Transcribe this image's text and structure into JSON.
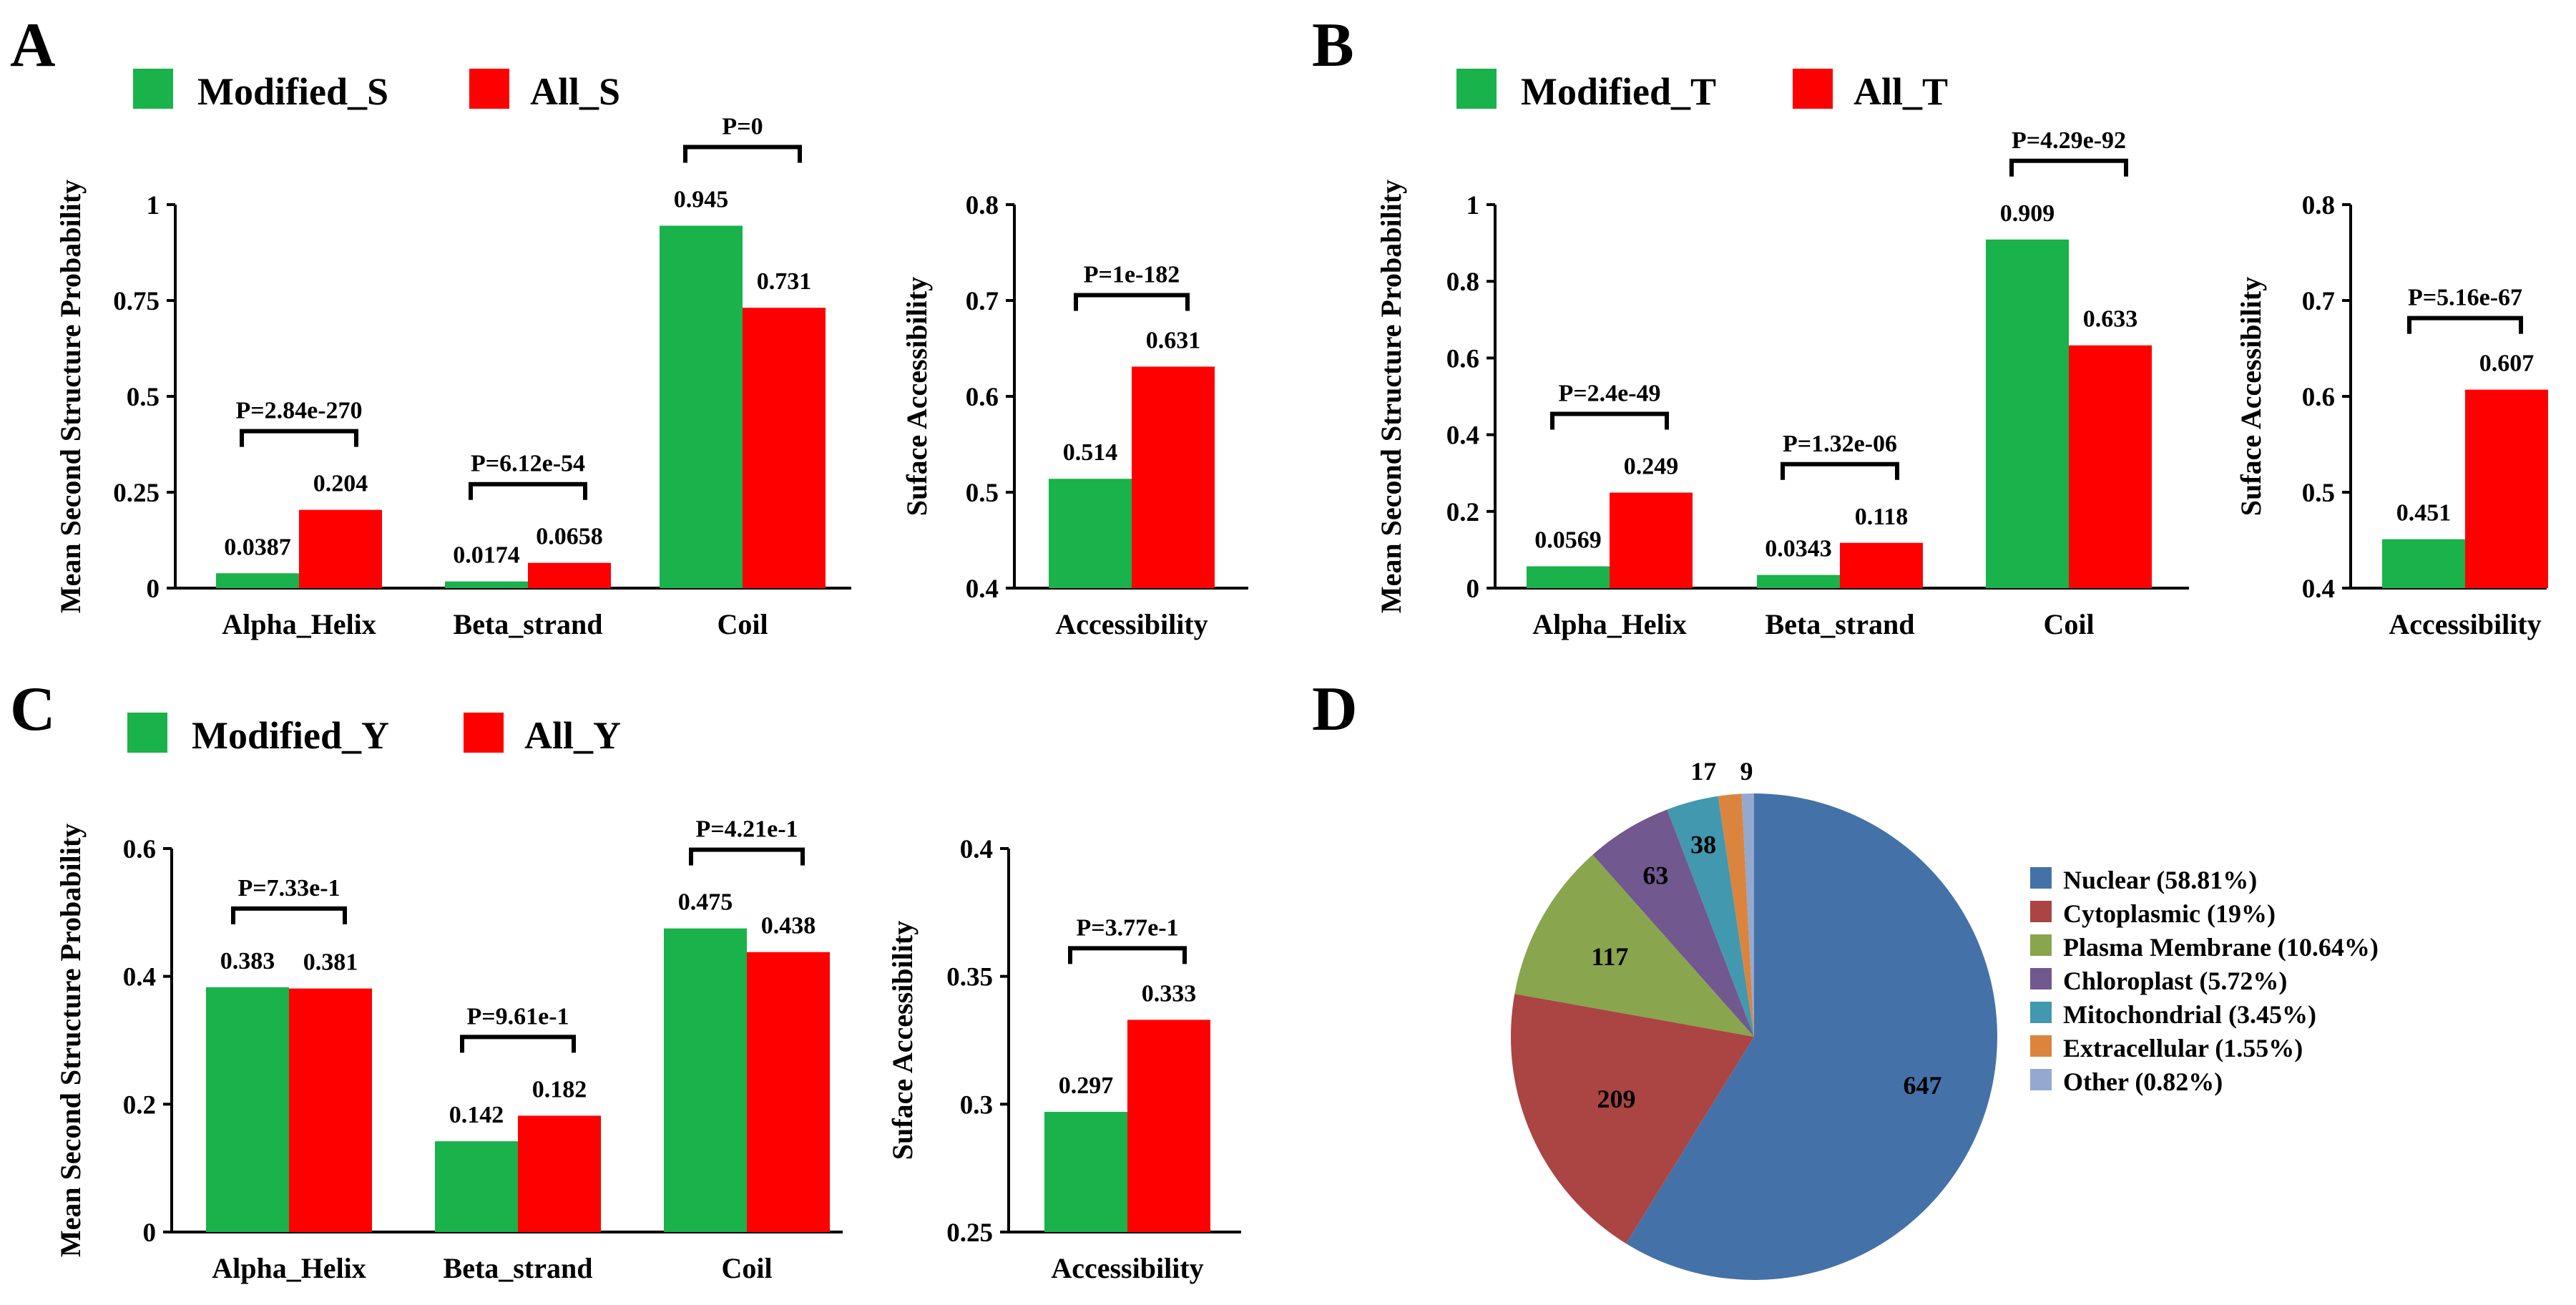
{
  "figure": {
    "panels": [
      "A",
      "B",
      "C",
      "D"
    ],
    "colors": {
      "modified": "#19b24b",
      "all": "#ff0000",
      "axis": "#000000"
    }
  },
  "chart_data": [
    {
      "id": "A-structure",
      "panel": "A",
      "type": "bar",
      "categories": [
        "Alpha_Helix",
        "Beta_strand",
        "Coil"
      ],
      "series": [
        {
          "name": "Modified_S",
          "color": "#19b24b",
          "values": [
            0.0387,
            0.0174,
            0.945
          ],
          "labels": [
            "0.0387",
            "0.0174",
            "0.945"
          ]
        },
        {
          "name": "All_S",
          "color": "#ff0000",
          "values": [
            0.204,
            0.0658,
            0.731
          ],
          "labels": [
            "0.204",
            "0.0658",
            "0.731"
          ]
        }
      ],
      "pvalues": [
        "P=2.84e-270",
        "P=6.12e-54",
        "P=0"
      ],
      "ylabel": "Mean Second Structure Probability",
      "ylim": [
        0,
        1
      ],
      "yticks": [
        "0",
        "0.25",
        "0.5",
        "0.75",
        "1"
      ],
      "legend": "top-left"
    },
    {
      "id": "A-access",
      "panel": "A",
      "type": "bar",
      "categories": [
        "Accessibility"
      ],
      "series": [
        {
          "name": "Modified_S",
          "color": "#19b24b",
          "values": [
            0.514
          ],
          "labels": [
            "0.514"
          ]
        },
        {
          "name": "All_S",
          "color": "#ff0000",
          "values": [
            0.631
          ],
          "labels": [
            "0.631"
          ]
        }
      ],
      "pvalues": [
        "P=1e-182"
      ],
      "ylabel": "Suface Accessibility",
      "ylim": [
        0.4,
        0.8
      ],
      "yticks": [
        "0.4",
        "0.5",
        "0.6",
        "0.7",
        "0.8"
      ]
    },
    {
      "id": "B-structure",
      "panel": "B",
      "type": "bar",
      "categories": [
        "Alpha_Helix",
        "Beta_strand",
        "Coil"
      ],
      "series": [
        {
          "name": "Modified_T",
          "color": "#19b24b",
          "values": [
            0.0569,
            0.0343,
            0.909
          ],
          "labels": [
            "0.0569",
            "0.0343",
            "0.909"
          ]
        },
        {
          "name": "All_T",
          "color": "#ff0000",
          "values": [
            0.249,
            0.118,
            0.633
          ],
          "labels": [
            "0.249",
            "0.118",
            "0.633"
          ]
        }
      ],
      "pvalues": [
        "P=2.4e-49",
        "P=1.32e-06",
        "P=4.29e-92"
      ],
      "ylabel": "Mean Second Structure Probability",
      "ylim": [
        0,
        1
      ],
      "yticks": [
        "0",
        "0.2",
        "0.4",
        "0.6",
        "0.8",
        "1"
      ],
      "legend": "top-left"
    },
    {
      "id": "B-access",
      "panel": "B",
      "type": "bar",
      "categories": [
        "Accessibility"
      ],
      "series": [
        {
          "name": "Modified_T",
          "color": "#19b24b",
          "values": [
            0.451
          ],
          "labels": [
            "0.451"
          ]
        },
        {
          "name": "All_T",
          "color": "#ff0000",
          "values": [
            0.607
          ],
          "labels": [
            "0.607"
          ]
        }
      ],
      "pvalues": [
        "P=5.16e-67"
      ],
      "ylabel": "Suface Accessibility",
      "ylim": [
        0.4,
        0.8
      ],
      "yticks": [
        "0.4",
        "0.5",
        "0.6",
        "0.7",
        "0.8"
      ]
    },
    {
      "id": "C-structure",
      "panel": "C",
      "type": "bar",
      "categories": [
        "Alpha_Helix",
        "Beta_strand",
        "Coil"
      ],
      "series": [
        {
          "name": "Modified_Y",
          "color": "#19b24b",
          "values": [
            0.383,
            0.142,
            0.475
          ],
          "labels": [
            "0.383",
            "0.142",
            "0.475"
          ]
        },
        {
          "name": "All_Y",
          "color": "#ff0000",
          "values": [
            0.381,
            0.182,
            0.438
          ],
          "labels": [
            "0.381",
            "0.182",
            "0.438"
          ]
        }
      ],
      "pvalues": [
        "P=7.33e-1",
        "P=9.61e-1",
        "P=4.21e-1"
      ],
      "ylabel": "Mean Second Structure Probability",
      "ylim": [
        0,
        0.6
      ],
      "yticks": [
        "0",
        "0.2",
        "0.4",
        "0.6"
      ],
      "legend": "top-left"
    },
    {
      "id": "C-access",
      "panel": "C",
      "type": "bar",
      "categories": [
        "Accessibility"
      ],
      "series": [
        {
          "name": "Modified_Y",
          "color": "#19b24b",
          "values": [
            0.297
          ],
          "labels": [
            "0.297"
          ]
        },
        {
          "name": "All_Y",
          "color": "#ff0000",
          "values": [
            0.333
          ],
          "labels": [
            "0.333"
          ]
        }
      ],
      "pvalues": [
        "P=3.77e-1"
      ],
      "ylabel": "Suface Accessibility",
      "ylim": [
        0.25,
        0.4
      ],
      "yticks": [
        "0.25",
        "0.3",
        "0.35",
        "0.4"
      ]
    },
    {
      "id": "D-pie",
      "panel": "D",
      "type": "pie",
      "slices": [
        {
          "label": "Nuclear (58.81%)",
          "count": "647",
          "value": 647,
          "color": "#4472a8"
        },
        {
          "label": "Cytoplasmic (19%)",
          "count": "209",
          "value": 209,
          "color": "#aa4543"
        },
        {
          "label": "Plasma Membrane (10.64%)",
          "count": "117",
          "value": 117,
          "color": "#89a54e"
        },
        {
          "label": "Chloroplast (5.72%)",
          "count": "63",
          "value": 63,
          "color": "#71588f"
        },
        {
          "label": "Mitochondrial (3.45%)",
          "count": "38",
          "value": 38,
          "color": "#4298af"
        },
        {
          "label": "Extracellular (1.55%)",
          "count": "17",
          "value": 17,
          "color": "#db843d"
        },
        {
          "label": "Other (0.82%)",
          "count": "9",
          "value": 9,
          "color": "#93a9cf"
        }
      ],
      "legend": "right"
    }
  ]
}
